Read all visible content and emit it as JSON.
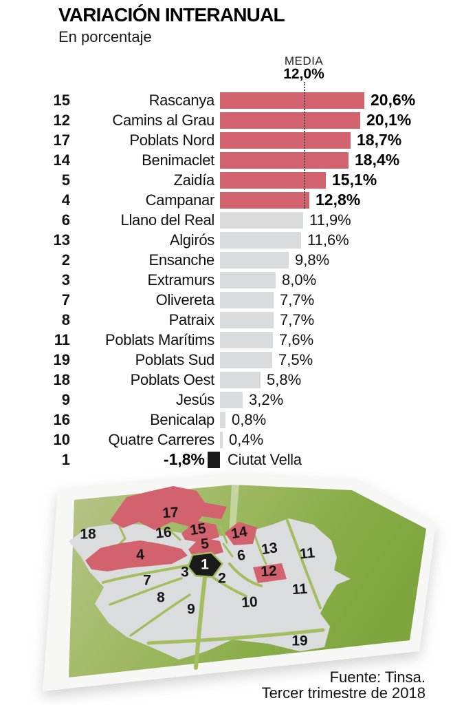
{
  "header": {
    "title": "VARIACIÓN INTERANUAL",
    "subtitle": "En porcentaje"
  },
  "media": {
    "label": "MEDIA",
    "value_label": "12,0%",
    "value": 12.0
  },
  "chart_data": {
    "type": "bar",
    "orientation": "horizontal",
    "title": "VARIACIÓN INTERANUAL",
    "subtitle": "En porcentaje",
    "unit": "%",
    "decimal_separator": ",",
    "mean_line": {
      "label": "MEDIA",
      "value": 12.0,
      "value_label": "12,0%"
    },
    "xlim": [
      -2,
      21
    ],
    "rows": [
      {
        "district": 15,
        "name": "Rascanya",
        "value": 20.6,
        "label": "20,6%",
        "group": "above"
      },
      {
        "district": 12,
        "name": "Camins al Grau",
        "value": 20.1,
        "label": "20,1%",
        "group": "above"
      },
      {
        "district": 17,
        "name": "Poblats Nord",
        "value": 18.7,
        "label": "18,7%",
        "group": "above"
      },
      {
        "district": 14,
        "name": "Benimaclet",
        "value": 18.4,
        "label": "18,4%",
        "group": "above"
      },
      {
        "district": 5,
        "name": "Zaidía",
        "value": 15.1,
        "label": "15,1%",
        "group": "above"
      },
      {
        "district": 4,
        "name": "Campanar",
        "value": 12.8,
        "label": "12,8%",
        "group": "above"
      },
      {
        "district": 6,
        "name": "Llano del Real",
        "value": 11.9,
        "label": "11,9%",
        "group": "below"
      },
      {
        "district": 13,
        "name": "Algirós",
        "value": 11.6,
        "label": "11,6%",
        "group": "below"
      },
      {
        "district": 2,
        "name": "Ensanche",
        "value": 9.8,
        "label": "9,8%",
        "group": "below"
      },
      {
        "district": 3,
        "name": "Extramurs",
        "value": 8.0,
        "label": "8,0%",
        "group": "below"
      },
      {
        "district": 7,
        "name": "Olivereta",
        "value": 7.7,
        "label": "7,7%",
        "group": "below"
      },
      {
        "district": 8,
        "name": "Patraix",
        "value": 7.7,
        "label": "7,7%",
        "group": "below"
      },
      {
        "district": 11,
        "name": "Poblats Marítims",
        "value": 7.6,
        "label": "7,6%",
        "group": "below"
      },
      {
        "district": 19,
        "name": "Poblats Sud",
        "value": 7.5,
        "label": "7,5%",
        "group": "below"
      },
      {
        "district": 18,
        "name": "Poblats Oest",
        "value": 5.8,
        "label": "5,8%",
        "group": "below"
      },
      {
        "district": 9,
        "name": "Jesús",
        "value": 3.2,
        "label": "3,2%",
        "group": "below"
      },
      {
        "district": 16,
        "name": "Benicalap",
        "value": 0.8,
        "label": "0,8%",
        "group": "below"
      },
      {
        "district": 10,
        "name": "Quatre Carreres",
        "value": 0.4,
        "label": "0,4%",
        "group": "below"
      },
      {
        "district": 1,
        "name": "Ciutat Vella",
        "value": -1.8,
        "label": "-1,8%",
        "group": "negative"
      }
    ],
    "colors": {
      "above": "#d2626d",
      "below": "#d9dbdd",
      "negative": "#1a1a1a",
      "mean_line": "#4a4a4a",
      "map_green_light": "#b4c183",
      "map_green_dark": "#7fa63e",
      "map_road": "#a3bd5f",
      "map_district_gray": "#dadcde"
    },
    "legend_position": "none",
    "grid": false
  },
  "map": {
    "labels": [
      {
        "id": "d17",
        "text": "17",
        "group": "above"
      },
      {
        "id": "d18",
        "text": "18",
        "group": "below"
      },
      {
        "id": "d16",
        "text": "16",
        "group": "below"
      },
      {
        "id": "d15",
        "text": "15",
        "group": "above"
      },
      {
        "id": "d14",
        "text": "14",
        "group": "above"
      },
      {
        "id": "d5",
        "text": "5",
        "group": "above"
      },
      {
        "id": "d4",
        "text": "4",
        "group": "above"
      },
      {
        "id": "d13",
        "text": "13",
        "group": "below"
      },
      {
        "id": "d11a",
        "text": "11",
        "group": "below"
      },
      {
        "id": "d6",
        "text": "6",
        "group": "below"
      },
      {
        "id": "d1",
        "text": "1",
        "group": "negative"
      },
      {
        "id": "d3",
        "text": "3",
        "group": "below"
      },
      {
        "id": "d2",
        "text": "2",
        "group": "below"
      },
      {
        "id": "d12",
        "text": "12",
        "group": "above"
      },
      {
        "id": "d7",
        "text": "7",
        "group": "below"
      },
      {
        "id": "d8",
        "text": "8",
        "group": "below"
      },
      {
        "id": "d9",
        "text": "9",
        "group": "below"
      },
      {
        "id": "d10",
        "text": "10",
        "group": "below"
      },
      {
        "id": "d11b",
        "text": "11",
        "group": "below"
      },
      {
        "id": "d19",
        "text": "19",
        "group": "below"
      }
    ]
  },
  "source": {
    "line1": "Fuente: Tinsa.",
    "line2": "Tercer trimestre de 2018"
  }
}
